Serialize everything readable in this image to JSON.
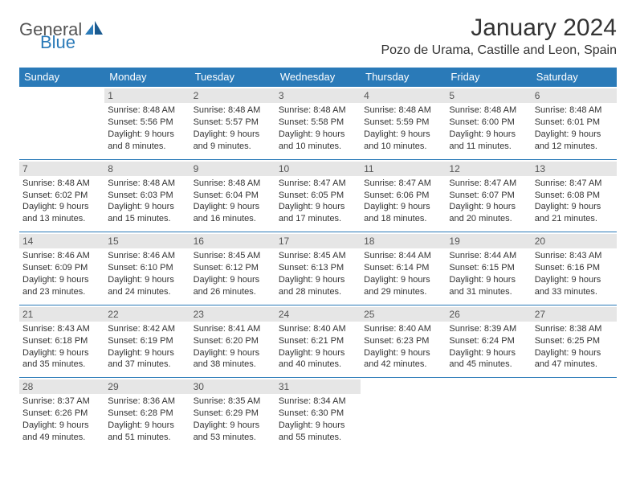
{
  "logo": {
    "general": "General",
    "blue": "Blue",
    "accent_color": "#2a7ab8"
  },
  "title": "January 2024",
  "location": "Pozo de Urama, Castille and Leon, Spain",
  "weekdays": [
    "Sunday",
    "Monday",
    "Tuesday",
    "Wednesday",
    "Thursday",
    "Friday",
    "Saturday"
  ],
  "header_bg": "#2a7ab8",
  "daynum_bg": "#e6e6e6",
  "weeks": [
    [
      {
        "n": "",
        "sr": "",
        "ss": "",
        "dl": ""
      },
      {
        "n": "1",
        "sr": "Sunrise: 8:48 AM",
        "ss": "Sunset: 5:56 PM",
        "dl": "Daylight: 9 hours and 8 minutes."
      },
      {
        "n": "2",
        "sr": "Sunrise: 8:48 AM",
        "ss": "Sunset: 5:57 PM",
        "dl": "Daylight: 9 hours and 9 minutes."
      },
      {
        "n": "3",
        "sr": "Sunrise: 8:48 AM",
        "ss": "Sunset: 5:58 PM",
        "dl": "Daylight: 9 hours and 10 minutes."
      },
      {
        "n": "4",
        "sr": "Sunrise: 8:48 AM",
        "ss": "Sunset: 5:59 PM",
        "dl": "Daylight: 9 hours and 10 minutes."
      },
      {
        "n": "5",
        "sr": "Sunrise: 8:48 AM",
        "ss": "Sunset: 6:00 PM",
        "dl": "Daylight: 9 hours and 11 minutes."
      },
      {
        "n": "6",
        "sr": "Sunrise: 8:48 AM",
        "ss": "Sunset: 6:01 PM",
        "dl": "Daylight: 9 hours and 12 minutes."
      }
    ],
    [
      {
        "n": "7",
        "sr": "Sunrise: 8:48 AM",
        "ss": "Sunset: 6:02 PM",
        "dl": "Daylight: 9 hours and 13 minutes."
      },
      {
        "n": "8",
        "sr": "Sunrise: 8:48 AM",
        "ss": "Sunset: 6:03 PM",
        "dl": "Daylight: 9 hours and 15 minutes."
      },
      {
        "n": "9",
        "sr": "Sunrise: 8:48 AM",
        "ss": "Sunset: 6:04 PM",
        "dl": "Daylight: 9 hours and 16 minutes."
      },
      {
        "n": "10",
        "sr": "Sunrise: 8:47 AM",
        "ss": "Sunset: 6:05 PM",
        "dl": "Daylight: 9 hours and 17 minutes."
      },
      {
        "n": "11",
        "sr": "Sunrise: 8:47 AM",
        "ss": "Sunset: 6:06 PM",
        "dl": "Daylight: 9 hours and 18 minutes."
      },
      {
        "n": "12",
        "sr": "Sunrise: 8:47 AM",
        "ss": "Sunset: 6:07 PM",
        "dl": "Daylight: 9 hours and 20 minutes."
      },
      {
        "n": "13",
        "sr": "Sunrise: 8:47 AM",
        "ss": "Sunset: 6:08 PM",
        "dl": "Daylight: 9 hours and 21 minutes."
      }
    ],
    [
      {
        "n": "14",
        "sr": "Sunrise: 8:46 AM",
        "ss": "Sunset: 6:09 PM",
        "dl": "Daylight: 9 hours and 23 minutes."
      },
      {
        "n": "15",
        "sr": "Sunrise: 8:46 AM",
        "ss": "Sunset: 6:10 PM",
        "dl": "Daylight: 9 hours and 24 minutes."
      },
      {
        "n": "16",
        "sr": "Sunrise: 8:45 AM",
        "ss": "Sunset: 6:12 PM",
        "dl": "Daylight: 9 hours and 26 minutes."
      },
      {
        "n": "17",
        "sr": "Sunrise: 8:45 AM",
        "ss": "Sunset: 6:13 PM",
        "dl": "Daylight: 9 hours and 28 minutes."
      },
      {
        "n": "18",
        "sr": "Sunrise: 8:44 AM",
        "ss": "Sunset: 6:14 PM",
        "dl": "Daylight: 9 hours and 29 minutes."
      },
      {
        "n": "19",
        "sr": "Sunrise: 8:44 AM",
        "ss": "Sunset: 6:15 PM",
        "dl": "Daylight: 9 hours and 31 minutes."
      },
      {
        "n": "20",
        "sr": "Sunrise: 8:43 AM",
        "ss": "Sunset: 6:16 PM",
        "dl": "Daylight: 9 hours and 33 minutes."
      }
    ],
    [
      {
        "n": "21",
        "sr": "Sunrise: 8:43 AM",
        "ss": "Sunset: 6:18 PM",
        "dl": "Daylight: 9 hours and 35 minutes."
      },
      {
        "n": "22",
        "sr": "Sunrise: 8:42 AM",
        "ss": "Sunset: 6:19 PM",
        "dl": "Daylight: 9 hours and 37 minutes."
      },
      {
        "n": "23",
        "sr": "Sunrise: 8:41 AM",
        "ss": "Sunset: 6:20 PM",
        "dl": "Daylight: 9 hours and 38 minutes."
      },
      {
        "n": "24",
        "sr": "Sunrise: 8:40 AM",
        "ss": "Sunset: 6:21 PM",
        "dl": "Daylight: 9 hours and 40 minutes."
      },
      {
        "n": "25",
        "sr": "Sunrise: 8:40 AM",
        "ss": "Sunset: 6:23 PM",
        "dl": "Daylight: 9 hours and 42 minutes."
      },
      {
        "n": "26",
        "sr": "Sunrise: 8:39 AM",
        "ss": "Sunset: 6:24 PM",
        "dl": "Daylight: 9 hours and 45 minutes."
      },
      {
        "n": "27",
        "sr": "Sunrise: 8:38 AM",
        "ss": "Sunset: 6:25 PM",
        "dl": "Daylight: 9 hours and 47 minutes."
      }
    ],
    [
      {
        "n": "28",
        "sr": "Sunrise: 8:37 AM",
        "ss": "Sunset: 6:26 PM",
        "dl": "Daylight: 9 hours and 49 minutes."
      },
      {
        "n": "29",
        "sr": "Sunrise: 8:36 AM",
        "ss": "Sunset: 6:28 PM",
        "dl": "Daylight: 9 hours and 51 minutes."
      },
      {
        "n": "30",
        "sr": "Sunrise: 8:35 AM",
        "ss": "Sunset: 6:29 PM",
        "dl": "Daylight: 9 hours and 53 minutes."
      },
      {
        "n": "31",
        "sr": "Sunrise: 8:34 AM",
        "ss": "Sunset: 6:30 PM",
        "dl": "Daylight: 9 hours and 55 minutes."
      },
      {
        "n": "",
        "sr": "",
        "ss": "",
        "dl": ""
      },
      {
        "n": "",
        "sr": "",
        "ss": "",
        "dl": ""
      },
      {
        "n": "",
        "sr": "",
        "ss": "",
        "dl": ""
      }
    ]
  ]
}
